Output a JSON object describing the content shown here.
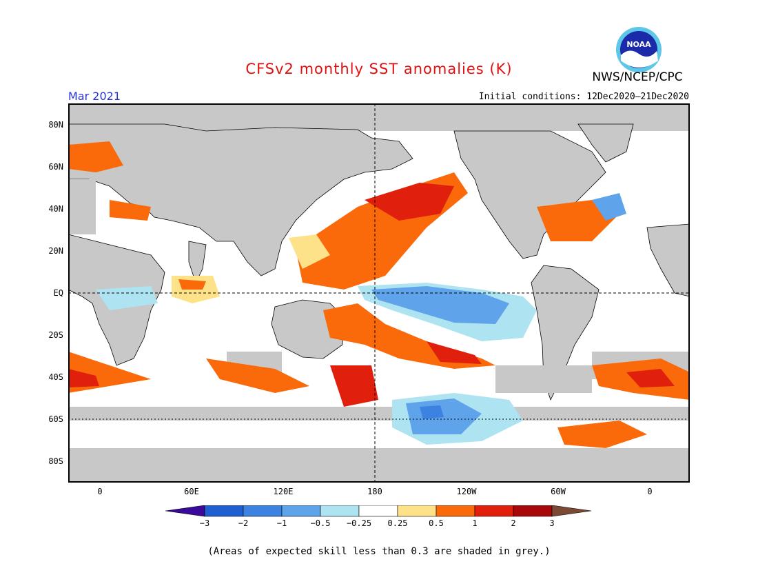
{
  "title": "CFSv2 monthly SST anomalies (K)",
  "agency": "NWS/NCEP/CPC",
  "logo_text": "NOAA",
  "month": "Mar 2021",
  "initial_conditions": "Initial conditions: 12Dec2020–21Dec2020",
  "lat_labels": [
    "80N",
    "60N",
    "40N",
    "20N",
    "EQ",
    "20S",
    "40S",
    "60S",
    "80S"
  ],
  "lon_labels": [
    "0",
    "60E",
    "120E",
    "180",
    "120W",
    "60W",
    "0"
  ],
  "colorbar": {
    "labels": [
      "−3",
      "−2",
      "−1",
      "−0.5",
      "−0.25",
      "0.25",
      "0.5",
      "1",
      "2",
      "3"
    ],
    "colors": [
      "#3b0a9c",
      "#1f5fd1",
      "#3c82e0",
      "#5fa3ea",
      "#aee3f2",
      "#ffffff",
      "#fde28a",
      "#fa6a0a",
      "#e0200c",
      "#a8080a",
      "#7a4a35"
    ]
  },
  "note": "(Areas of expected skill less than 0.3 are shaded in grey.)",
  "map_colors": {
    "land": "#c8c8c8",
    "ocean_neutral": "#ffffff",
    "low_skill": "#c8c8c8",
    "warm_1": "#fde28a",
    "warm_2": "#fa6a0a",
    "warm_3": "#e0200c",
    "warm_4": "#a8080a",
    "cool_1": "#aee3f2",
    "cool_2": "#5fa3ea",
    "cool_3": "#3c82e0"
  }
}
